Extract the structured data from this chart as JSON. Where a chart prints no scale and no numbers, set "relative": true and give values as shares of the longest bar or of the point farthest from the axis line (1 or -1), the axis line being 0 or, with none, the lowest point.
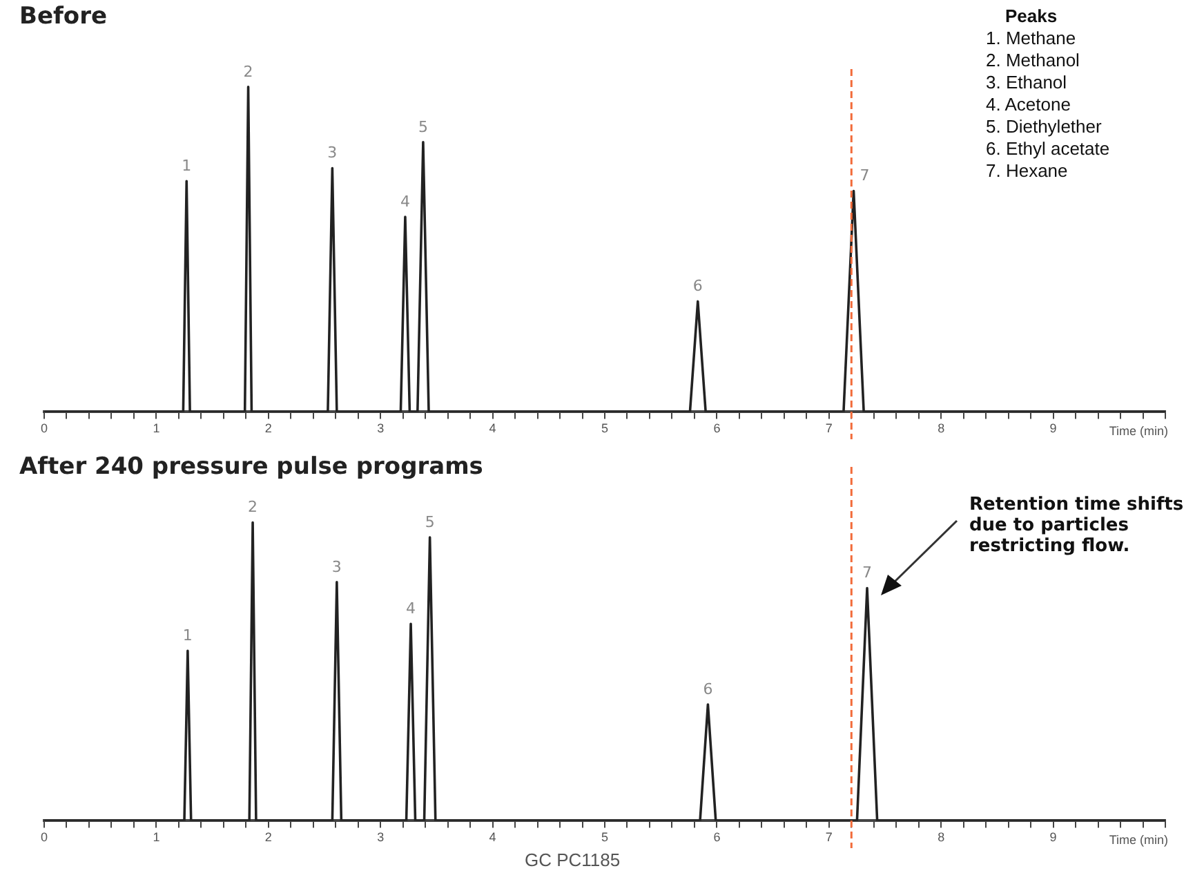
{
  "chart_data": [
    {
      "type": "line",
      "title": "Before",
      "xlabel": "Time (min)",
      "relative": true,
      "legend": false,
      "grid": false,
      "marker": "none",
      "x": [
        0,
        1.24,
        1.27,
        1.3,
        1.79,
        1.82,
        1.85,
        2.53,
        2.57,
        2.61,
        3.18,
        3.22,
        3.26,
        3.33,
        3.38,
        3.43,
        5.76,
        5.83,
        5.9,
        7.13,
        7.22,
        7.31,
        10
      ],
      "series": [
        {
          "color": "#222222",
          "values": [
            0,
            0,
            0.71,
            0,
            0,
            1,
            0,
            0,
            0.75,
            0,
            0,
            0.6,
            0,
            0,
            0.83,
            0,
            0,
            0.34,
            0,
            0,
            0.68,
            0,
            0
          ]
        }
      ],
      "xlim": [
        0,
        10
      ],
      "xticks": [
        0,
        {
          "value": 0.2,
          "label": null
        },
        {
          "value": 0.4,
          "label": null
        },
        {
          "value": 0.6,
          "label": null
        },
        {
          "value": 0.8,
          "label": null
        },
        1,
        {
          "value": 1.2,
          "label": null
        },
        {
          "value": 1.4,
          "label": null
        },
        {
          "value": 1.6,
          "label": null
        },
        {
          "value": 1.8,
          "label": null
        },
        2,
        {
          "value": 2.2,
          "label": null
        },
        {
          "value": 2.4,
          "label": null
        },
        {
          "value": 2.6,
          "label": null
        },
        {
          "value": 2.8,
          "label": null
        },
        3,
        {
          "value": 3.2,
          "label": null
        },
        {
          "value": 3.4,
          "label": null
        },
        {
          "value": 3.6,
          "label": null
        },
        {
          "value": 3.8,
          "label": null
        },
        4,
        {
          "value": 4.2,
          "label": null
        },
        {
          "value": 4.4,
          "label": null
        },
        {
          "value": 4.6,
          "label": null
        },
        {
          "value": 4.8,
          "label": null
        },
        5,
        {
          "value": 5.2,
          "label": null
        },
        {
          "value": 5.4,
          "label": null
        },
        {
          "value": 5.6,
          "label": null
        },
        {
          "value": 5.8,
          "label": null
        },
        6,
        {
          "value": 6.2,
          "label": null
        },
        {
          "value": 6.4,
          "label": null
        },
        {
          "value": 6.6,
          "label": null
        },
        {
          "value": 6.8,
          "label": null
        },
        7,
        {
          "value": 7.2,
          "label": null
        },
        {
          "value": 7.4,
          "label": null
        },
        {
          "value": 7.6,
          "label": null
        },
        {
          "value": 7.8,
          "label": null
        },
        8,
        {
          "value": 8.2,
          "label": null
        },
        {
          "value": 8.4,
          "label": null
        },
        {
          "value": 8.6,
          "label": null
        },
        {
          "value": 8.8,
          "label": null
        },
        9,
        {
          "value": 9.2,
          "label": null
        },
        {
          "value": 9.4,
          "label": null
        },
        {
          "value": 9.6,
          "label": null
        },
        {
          "value": 9.8,
          "label": null
        },
        {
          "value": 10,
          "label": null
        }
      ],
      "ref_lines": [
        {
          "axis": "x",
          "value": 7.2,
          "color": "#f26b3a",
          "line_style": "dashed"
        }
      ],
      "annotations": [
        "Peaks",
        "1. Methane",
        "2. Methanol",
        "3. Ethanol",
        "4. Acetone",
        "5. Diethylether",
        "6. Ethyl acetate",
        "7. Hexane",
        {
          "text": "1",
          "x": 1.27,
          "y": 0.71
        },
        {
          "text": "2",
          "x": 1.82,
          "y": 1
        },
        {
          "text": "3",
          "x": 2.57,
          "y": 0.75
        },
        {
          "text": "4",
          "x": 3.22,
          "y": 0.6
        },
        {
          "text": "5",
          "x": 3.38,
          "y": 0.83
        },
        {
          "text": "6",
          "x": 5.83,
          "y": 0.34
        },
        {
          "text": "7",
          "x": 7.22,
          "y": 0.68
        }
      ]
    },
    {
      "type": "line",
      "title": "After 240 pressure pulse programs",
      "xlabel": "Time (min)",
      "relative": true,
      "legend": false,
      "grid": false,
      "marker": "none",
      "x": [
        0,
        1.25,
        1.28,
        1.31,
        1.83,
        1.86,
        1.89,
        2.57,
        2.61,
        2.65,
        3.23,
        3.27,
        3.31,
        3.39,
        3.44,
        3.49,
        5.85,
        5.92,
        5.99,
        7.25,
        7.34,
        7.43,
        10
      ],
      "series": [
        {
          "color": "#222222",
          "values": [
            0,
            0,
            0.57,
            0,
            0,
            1,
            0,
            0,
            0.8,
            0,
            0,
            0.66,
            0,
            0,
            0.95,
            0,
            0,
            0.39,
            0,
            0,
            0.78,
            0,
            0
          ]
        }
      ],
      "xlim": [
        0,
        10
      ],
      "xticks": [
        0,
        {
          "value": 0.2,
          "label": null
        },
        {
          "value": 0.4,
          "label": null
        },
        {
          "value": 0.6,
          "label": null
        },
        {
          "value": 0.8,
          "label": null
        },
        1,
        {
          "value": 1.2,
          "label": null
        },
        {
          "value": 1.4,
          "label": null
        },
        {
          "value": 1.6,
          "label": null
        },
        {
          "value": 1.8,
          "label": null
        },
        2,
        {
          "value": 2.2,
          "label": null
        },
        {
          "value": 2.4,
          "label": null
        },
        {
          "value": 2.6,
          "label": null
        },
        {
          "value": 2.8,
          "label": null
        },
        3,
        {
          "value": 3.2,
          "label": null
        },
        {
          "value": 3.4,
          "label": null
        },
        {
          "value": 3.6,
          "label": null
        },
        {
          "value": 3.8,
          "label": null
        },
        4,
        {
          "value": 4.2,
          "label": null
        },
        {
          "value": 4.4,
          "label": null
        },
        {
          "value": 4.6,
          "label": null
        },
        {
          "value": 4.8,
          "label": null
        },
        5,
        {
          "value": 5.2,
          "label": null
        },
        {
          "value": 5.4,
          "label": null
        },
        {
          "value": 5.6,
          "label": null
        },
        {
          "value": 5.8,
          "label": null
        },
        6,
        {
          "value": 6.2,
          "label": null
        },
        {
          "value": 6.4,
          "label": null
        },
        {
          "value": 6.6,
          "label": null
        },
        {
          "value": 6.8,
          "label": null
        },
        7,
        {
          "value": 7.2,
          "label": null
        },
        {
          "value": 7.4,
          "label": null
        },
        {
          "value": 7.6,
          "label": null
        },
        {
          "value": 7.8,
          "label": null
        },
        8,
        {
          "value": 8.2,
          "label": null
        },
        {
          "value": 8.4,
          "label": null
        },
        {
          "value": 8.6,
          "label": null
        },
        {
          "value": 8.8,
          "label": null
        },
        9,
        {
          "value": 9.2,
          "label": null
        },
        {
          "value": 9.4,
          "label": null
        },
        {
          "value": 9.6,
          "label": null
        },
        {
          "value": 9.8,
          "label": null
        },
        {
          "value": 10,
          "label": null
        }
      ],
      "ref_lines": [
        {
          "axis": "x",
          "value": 7.2,
          "color": "#f26b3a",
          "line_style": "dashed"
        }
      ],
      "annotations": [
        "Retention time shifts due to particles restricting flow.",
        "GC  PC1185",
        {
          "text": "1",
          "x": 1.28,
          "y": 0.57
        },
        {
          "text": "2",
          "x": 1.86,
          "y": 1
        },
        {
          "text": "3",
          "x": 2.61,
          "y": 0.8
        },
        {
          "text": "4",
          "x": 3.27,
          "y": 0.66
        },
        {
          "text": "5",
          "x": 3.44,
          "y": 0.95
        },
        {
          "text": "6",
          "x": 5.92,
          "y": 0.39
        },
        {
          "text": "7",
          "x": 7.34,
          "y": 0.78
        }
      ]
    }
  ]
}
